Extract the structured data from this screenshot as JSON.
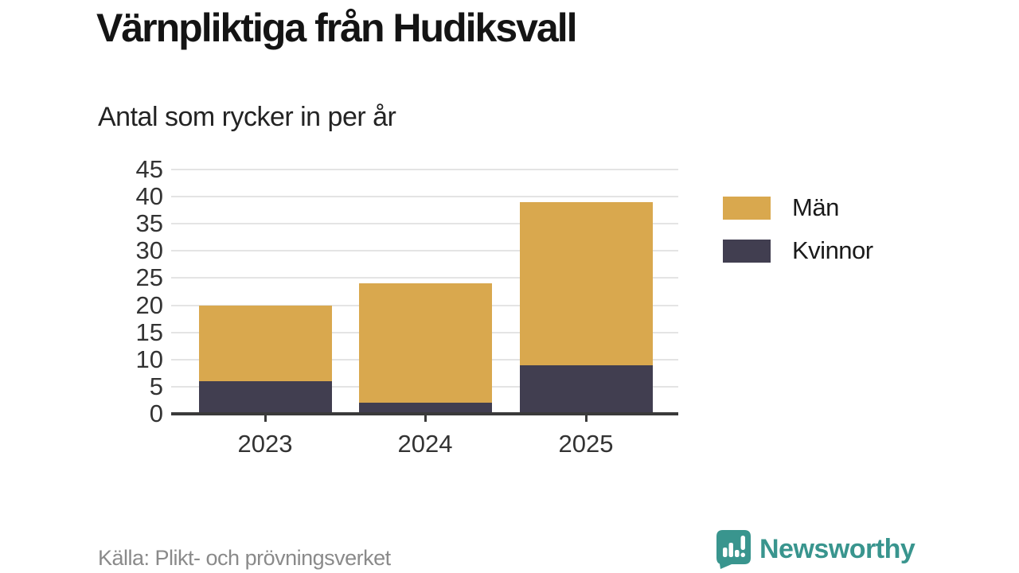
{
  "header": {
    "title": "Värnpliktiga från Hudiksvall",
    "subtitle": "Antal som rycker in per år"
  },
  "chart_data": {
    "type": "bar",
    "stacked": true,
    "title": "Värnpliktiga från Hudiksvall",
    "subtitle": "Antal som rycker in per år",
    "categories": [
      "2023",
      "2024",
      "2025"
    ],
    "series": [
      {
        "name": "Män",
        "color": "#d9a84e",
        "values": [
          14,
          22,
          30
        ]
      },
      {
        "name": "Kvinnor",
        "color": "#413e50",
        "values": [
          6,
          2,
          9
        ]
      }
    ],
    "stack_order_bottom_to_top": [
      "Kvinnor",
      "Män"
    ],
    "totals": [
      20,
      24,
      39
    ],
    "xlabel": "",
    "ylabel": "",
    "ylim": [
      0,
      45
    ],
    "ytick_step": 5,
    "yticks": [
      0,
      5,
      10,
      15,
      20,
      25,
      30,
      35,
      40,
      45
    ],
    "grid": true,
    "legend_position": "right",
    "legend_order": [
      "Män",
      "Kvinnor"
    ]
  },
  "footer": {
    "source": "Källa: Plikt- och prövningsverket",
    "brand_name": "Newsworthy"
  },
  "colors": {
    "men": "#d9a84e",
    "women": "#413e50",
    "brand_teal": "#39958e",
    "gridline": "#e4e4e4",
    "axis": "#3a3a3a",
    "source_text": "#8a8a8a"
  },
  "icons": {
    "brand_icon": "newsworthy-speech-bubble-bar-chart-icon"
  }
}
